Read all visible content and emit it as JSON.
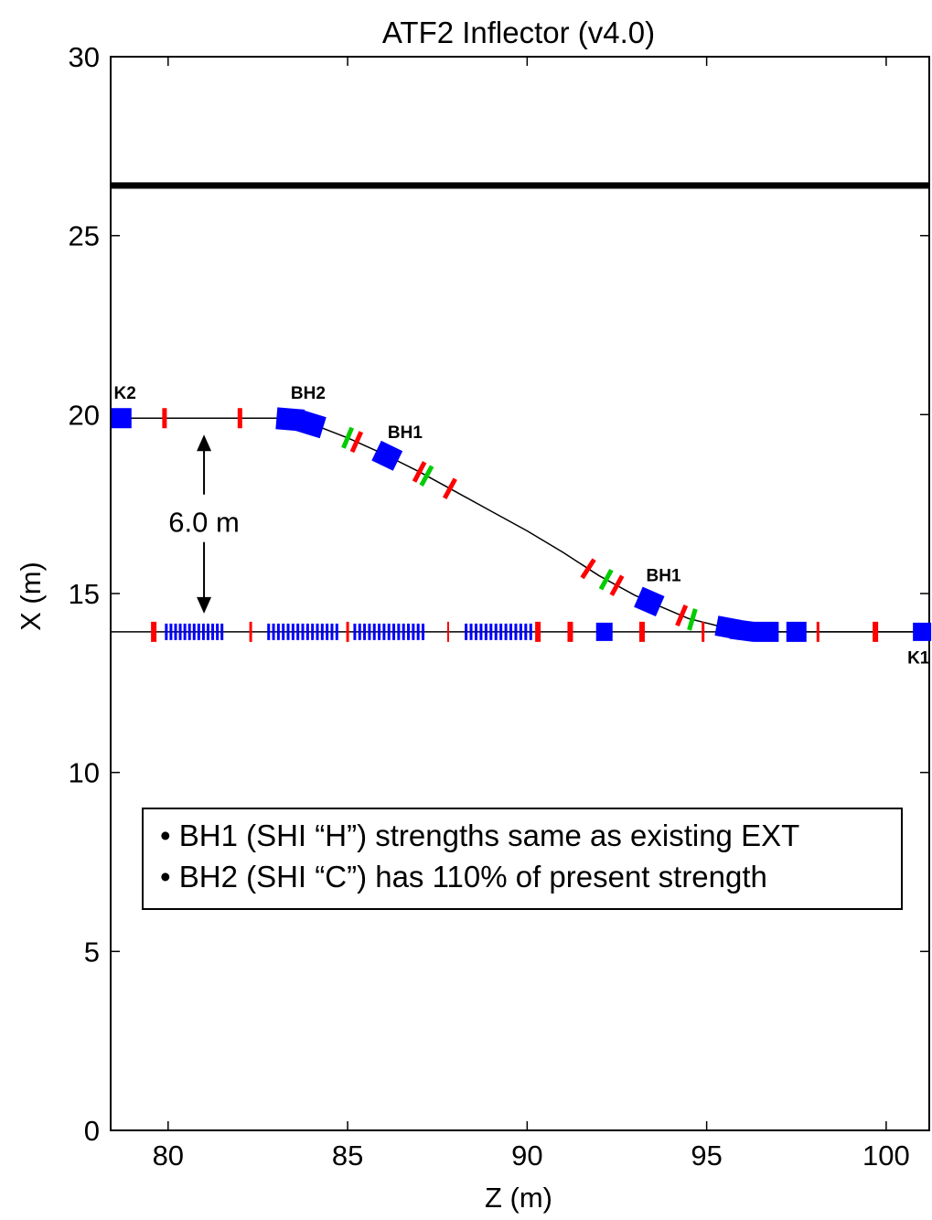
{
  "chart_data": {
    "type": "scatter",
    "title": "ATF2 Inflector (v4.0)",
    "xlabel": "Z (m)",
    "ylabel": "X (m)",
    "xlim": [
      78.4,
      101.2
    ],
    "ylim": [
      0,
      30
    ],
    "xticks": [
      80,
      85,
      90,
      95,
      100
    ],
    "yticks": [
      0,
      5,
      10,
      15,
      20,
      25,
      30
    ],
    "grid": false,
    "colors": {
      "dipole": "#0000ff",
      "quad": "#ff0000",
      "sext": "#00cc00",
      "line": "#000000"
    },
    "series": [
      {
        "name": "",
        "values_x": [
          78.4,
          78.9,
          82.0,
          83.0,
          83.6,
          84.1,
          85.0,
          86.0,
          87.0,
          88.0,
          89.0,
          90.0,
          91.0,
          92.0,
          93.0,
          93.8,
          94.5,
          95.3,
          96.0,
          96.5,
          101.2
        ],
        "values_y": [
          19.9,
          19.9,
          19.9,
          19.9,
          19.85,
          19.7,
          19.35,
          18.9,
          18.4,
          17.85,
          17.3,
          16.75,
          16.15,
          15.5,
          14.95,
          14.6,
          14.3,
          14.1,
          13.97,
          13.93,
          13.93
        ]
      },
      {
        "name": "",
        "values_x": [
          78.4,
          101.2
        ],
        "values_y": [
          13.93,
          13.93
        ]
      }
    ],
    "ref_line_y": 26.4,
    "labels": [
      {
        "text": "K2",
        "x": 78.8,
        "y": 20.6
      },
      {
        "text": "BH2",
        "x": 83.9,
        "y": 20.6
      },
      {
        "text": "BH1",
        "x": 86.6,
        "y": 19.5
      },
      {
        "text": "BH1",
        "x": 93.8,
        "y": 15.5
      },
      {
        "text": "K1",
        "x": 100.9,
        "y": 13.2
      }
    ],
    "annotation": {
      "text": "6.0 m",
      "x": 81.0,
      "y_top": 19.9,
      "y_bottom": 13.93,
      "text_y": 17.0
    }
  },
  "notes": {
    "line1": "• BH1 (SHI “H”) strengths same as existing EXT",
    "line2": "• BH2 (SHI “C”) has 110% of present strength"
  }
}
